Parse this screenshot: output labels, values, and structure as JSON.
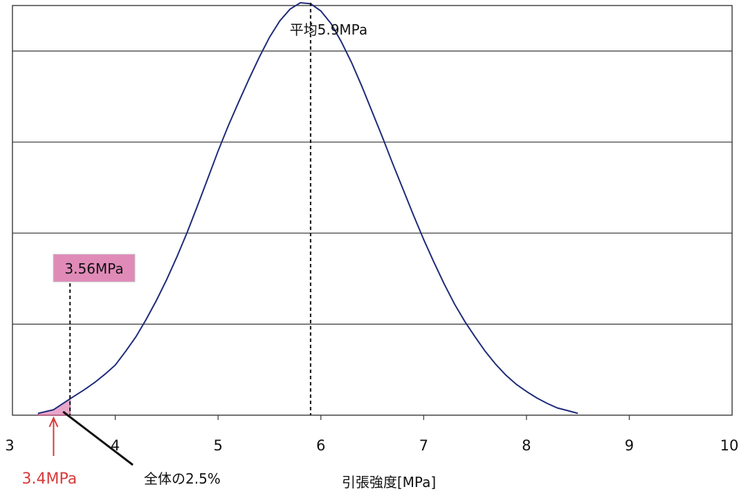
{
  "chart_data": {
    "type": "line",
    "xlabel": "引張強度[MPa]",
    "ylabel": "",
    "xlim": [
      3,
      10
    ],
    "ylim": [
      0,
      4.5
    ],
    "x_ticks": [
      "3",
      "4",
      "5",
      "6",
      "7",
      "8",
      "9",
      "10"
    ],
    "y_gridlines": [
      1,
      2,
      3,
      4
    ],
    "grid": "horizontal",
    "curve_color": "#1e2a78",
    "highlight_color": "#e08ab8",
    "arrow_color": "#d83a3a",
    "series": [
      {
        "x": [
          3.25,
          3.4,
          3.56,
          3.7,
          3.8,
          3.9,
          4.0,
          4.1,
          4.2,
          4.3,
          4.4,
          4.5,
          4.6,
          4.7,
          4.8,
          4.9,
          5.0,
          5.1,
          5.2,
          5.3,
          5.4,
          5.5,
          5.6,
          5.7,
          5.8,
          5.9,
          6.0,
          6.1,
          6.2,
          6.3,
          6.4,
          6.5,
          6.6,
          6.7,
          6.8,
          6.9,
          7.0,
          7.1,
          7.2,
          7.3,
          7.4,
          7.5,
          7.6,
          7.7,
          7.8,
          7.9,
          8.0,
          8.1,
          8.2,
          8.3,
          8.4,
          8.5
        ],
        "values": [
          0.02,
          0.06,
          0.18,
          0.28,
          0.36,
          0.45,
          0.55,
          0.7,
          0.86,
          1.05,
          1.26,
          1.49,
          1.74,
          2.01,
          2.3,
          2.6,
          2.9,
          3.18,
          3.44,
          3.69,
          3.93,
          4.15,
          4.33,
          4.46,
          4.53,
          4.52,
          4.44,
          4.3,
          4.1,
          3.87,
          3.61,
          3.33,
          3.05,
          2.76,
          2.48,
          2.2,
          1.93,
          1.68,
          1.44,
          1.22,
          1.03,
          0.86,
          0.7,
          0.56,
          0.44,
          0.34,
          0.26,
          0.19,
          0.13,
          0.08,
          0.05,
          0.02
        ]
      }
    ],
    "annotations": {
      "mean": {
        "text": "平均5.9MPa",
        "x": 5.9
      },
      "threshold": {
        "text": "3.56MPa",
        "x": 3.56
      },
      "lower": {
        "text": "3.4MPa",
        "x": 3.4
      },
      "area": {
        "text": "全体の2.5%"
      }
    }
  }
}
